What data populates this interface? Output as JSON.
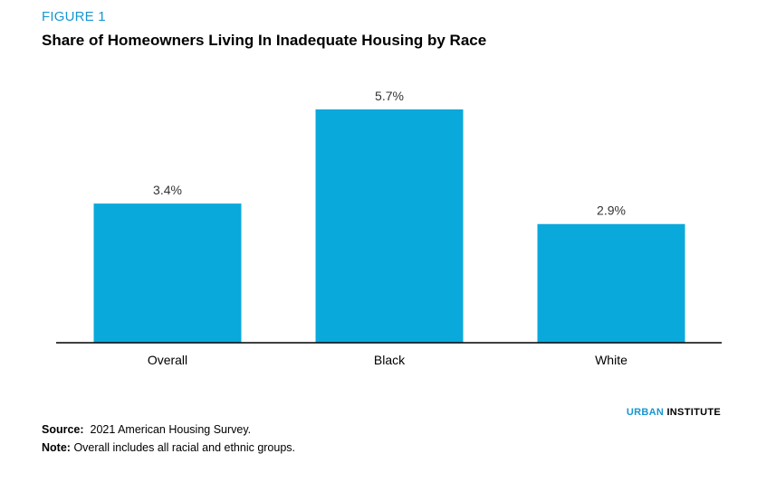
{
  "figure_label": "FIGURE 1",
  "title": "Share of Homeowners Living In Inadequate Housing by Race",
  "chart_data": {
    "type": "bar",
    "categories": [
      "Overall",
      "Black",
      "White"
    ],
    "values": [
      3.4,
      5.7,
      2.9
    ],
    "value_labels": [
      "3.4%",
      "5.7%",
      "2.9%"
    ],
    "title": "Share of Homeowners Living In Inadequate Housing by Race",
    "xlabel": "",
    "ylabel": "",
    "ylim": [
      0,
      6.2
    ],
    "grid": false,
    "legend": "none",
    "bar_color": "#0aa9db",
    "axis_color": "#000000"
  },
  "brand": {
    "part1": "URBAN",
    "part2": "INSTITUTE",
    "color_accent": "#1696d2"
  },
  "source": {
    "label": "Source:",
    "text": "2021 American Housing Survey."
  },
  "note": {
    "label": "Note:",
    "text": "Overall includes all racial and ethnic groups."
  }
}
